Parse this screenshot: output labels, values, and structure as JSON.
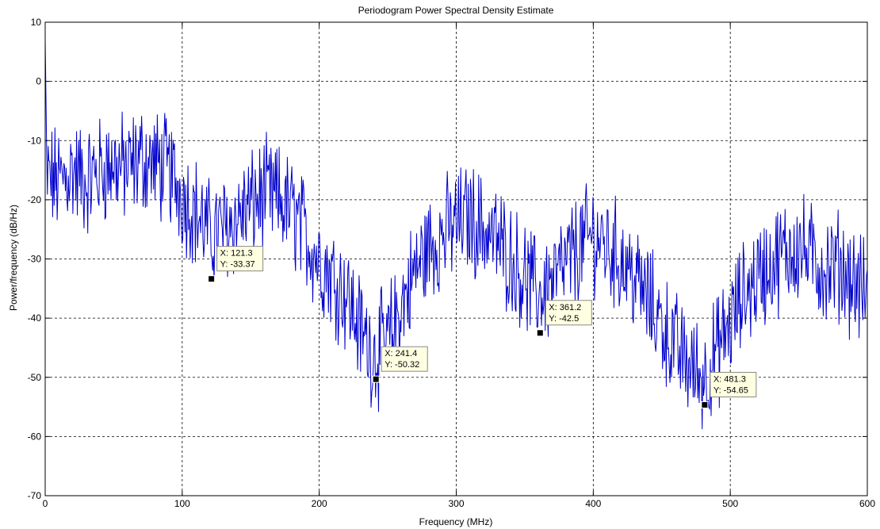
{
  "chart_data": {
    "type": "line",
    "title": "Periodogram Power Spectral Density Estimate",
    "xlabel": "Frequency (MHz)",
    "ylabel": "Power/frequency (dB/Hz)",
    "xlim": [
      0,
      600
    ],
    "ylim": [
      -70,
      10
    ],
    "xticks": [
      0,
      100,
      200,
      300,
      400,
      500,
      600
    ],
    "yticks": [
      10,
      0,
      -10,
      -20,
      -30,
      -40,
      -50,
      -60,
      -70
    ],
    "xtick_labels": [
      "0",
      "100",
      "200",
      "300",
      "400",
      "500",
      "600"
    ],
    "ytick_labels": [
      "10",
      "0",
      "-10",
      "-20",
      "-30",
      "-40",
      "-50",
      "-60",
      "-70"
    ],
    "grid": true,
    "line_color": "#0000cc",
    "series": [
      {
        "envelope_x": [
          0,
          10,
          20,
          30,
          40,
          50,
          60,
          70,
          80,
          90,
          100,
          110,
          120,
          130,
          140,
          150,
          160,
          170,
          180,
          190,
          200,
          210,
          220,
          230,
          240,
          250,
          260,
          270,
          280,
          290,
          300,
          310,
          320,
          330,
          340,
          350,
          360,
          370,
          380,
          390,
          400,
          410,
          420,
          430,
          440,
          450,
          460,
          470,
          480,
          490,
          500,
          510,
          520,
          530,
          540,
          550,
          560,
          570,
          580,
          590,
          600
        ],
        "envelope_y": [
          -16,
          -17,
          -15,
          -17,
          -15,
          -14,
          -15,
          -13,
          -14,
          -15,
          -19,
          -22,
          -26,
          -25,
          -23,
          -21,
          -19,
          -20,
          -22,
          -26,
          -30,
          -33,
          -36,
          -42,
          -46,
          -44,
          -38,
          -32,
          -28,
          -26,
          -24,
          -23,
          -25,
          -27,
          -30,
          -33,
          -36,
          -34,
          -31,
          -28,
          -26,
          -28,
          -30,
          -33,
          -37,
          -41,
          -45,
          -48,
          -50,
          -46,
          -41,
          -36,
          -33,
          -31,
          -29,
          -28,
          -30,
          -32,
          -31,
          -34,
          -36
        ]
      }
    ],
    "datatips": [
      {
        "x": 121.3,
        "y": -33.37,
        "label_x": "X: 121.3",
        "label_y": "Y: -33.37"
      },
      {
        "x": 241.4,
        "y": -50.32,
        "label_x": "X: 241.4",
        "label_y": "Y: -50.32"
      },
      {
        "x": 361.2,
        "y": -42.5,
        "label_x": "X: 361.2",
        "label_y": "Y: -42.5"
      },
      {
        "x": 481.3,
        "y": -54.65,
        "label_x": "X: 481.3",
        "label_y": "Y: -54.65"
      }
    ]
  }
}
